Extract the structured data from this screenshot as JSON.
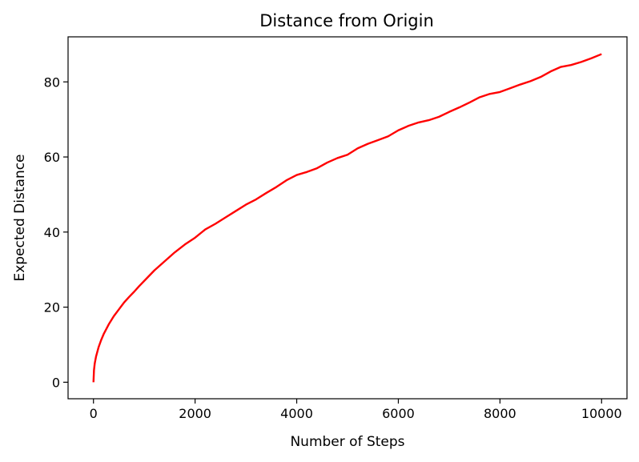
{
  "chart_data": {
    "type": "line",
    "title": "Distance from Origin",
    "xlabel": "Number of Steps",
    "ylabel": "Expected Distance",
    "xlim": [
      -500,
      10500
    ],
    "ylim": [
      -4.4,
      92
    ],
    "xticks": [
      0,
      2000,
      4000,
      6000,
      8000,
      10000
    ],
    "yticks": [
      0,
      20,
      40,
      60,
      80
    ],
    "grid": false,
    "legend": "none",
    "series": [
      {
        "color": "#ff0000",
        "x": [
          0,
          10,
          25,
          50,
          100,
          150,
          200,
          300,
          400,
          500,
          600,
          700,
          800,
          900,
          1000,
          1200,
          1400,
          1600,
          1800,
          2000,
          2200,
          2400,
          2600,
          2800,
          3000,
          3200,
          3400,
          3600,
          3800,
          4000,
          4200,
          4400,
          4600,
          4800,
          5000,
          5200,
          5400,
          5600,
          5800,
          6000,
          6200,
          6400,
          6600,
          6800,
          7000,
          7200,
          7400,
          7600,
          7800,
          8000,
          8200,
          8400,
          8600,
          8800,
          9000,
          9200,
          9400,
          9600,
          9800,
          10000
        ],
        "y": [
          0,
          3.2,
          5.0,
          6.8,
          9.3,
          11.2,
          12.8,
          15.4,
          17.6,
          19.4,
          21.2,
          22.7,
          24.1,
          25.6,
          27.0,
          29.8,
          32.2,
          34.6,
          36.7,
          38.5,
          40.7,
          42.2,
          43.9,
          45.6,
          47.3,
          48.7,
          50.4,
          52.0,
          53.8,
          55.2,
          56.0,
          57.0,
          58.5,
          59.7,
          60.6,
          62.3,
          63.5,
          64.5,
          65.5,
          67.1,
          68.3,
          69.2,
          69.8,
          70.7,
          72.0,
          73.2,
          74.5,
          75.9,
          76.8,
          77.3,
          78.3,
          79.3,
          80.2,
          81.3,
          82.8,
          84.0,
          84.5,
          85.3,
          86.3,
          87.4
        ]
      }
    ]
  }
}
